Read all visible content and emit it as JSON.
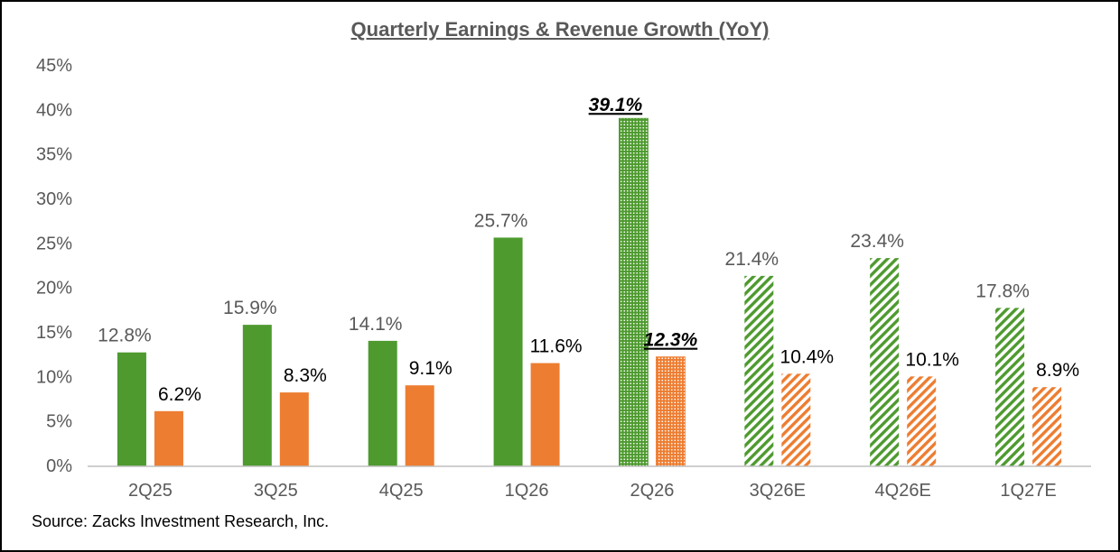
{
  "chart_data": {
    "type": "bar",
    "title": "Quarterly Earnings & Revenue Growth (YoY)",
    "categories": [
      "2Q25",
      "3Q25",
      "4Q25",
      "1Q26",
      "2Q26",
      "3Q26E",
      "4Q26E",
      "1Q27E"
    ],
    "series": [
      {
        "color": "#4e9a2f",
        "values": [
          12.8,
          15.9,
          14.1,
          25.7,
          39.1,
          21.4,
          23.4,
          17.8
        ],
        "labels": [
          "12.8%",
          "15.9%",
          "14.1%",
          "25.7%",
          "39.1%",
          "21.4%",
          "23.4%",
          "17.8%"
        ]
      },
      {
        "color": "#ed7d31",
        "values": [
          6.2,
          8.3,
          9.1,
          11.6,
          12.3,
          10.4,
          10.1,
          8.9
        ],
        "labels": [
          "6.2%",
          "8.3%",
          "9.1%",
          "11.6%",
          "12.3%",
          "10.4%",
          "10.1%",
          "8.9%"
        ]
      }
    ],
    "ylim": [
      0,
      45
    ],
    "y_tick_step": 5,
    "y_ticks": [
      "0%",
      "5%",
      "10%",
      "15%",
      "20%",
      "25%",
      "30%",
      "35%",
      "40%",
      "45%"
    ],
    "grid": false,
    "highlight_category": "2Q26",
    "estimate_categories": [
      "3Q26E",
      "4Q26E",
      "1Q27E"
    ]
  },
  "source": "Source: Zacks Investment Research, Inc.",
  "colors": {
    "title": "#595959",
    "axis_text": "#595959",
    "axis_line": "#bfbfbf",
    "frame_border": "#000000"
  }
}
